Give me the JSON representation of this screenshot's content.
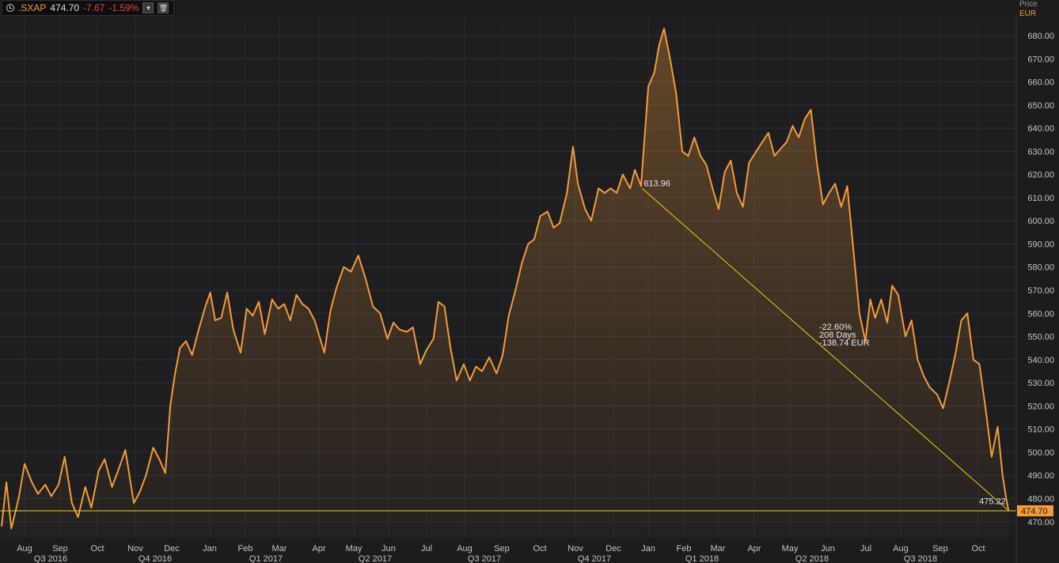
{
  "legend": {
    "symbol": ".SXAP",
    "last": "474.70",
    "change": "-7.67",
    "change_pct": "-1.59%",
    "icons": [
      "clock-icon",
      "chevron-down-icon",
      "trash-icon"
    ]
  },
  "axis_header": {
    "label": "Price",
    "currency": "EUR"
  },
  "colors": {
    "line": "#f39b3a",
    "trend": "#e6d21a",
    "background": "#1c1c1e",
    "negative": "#e0434c"
  },
  "chart_data": {
    "type": "area",
    "ylim": [
      465,
      685
    ],
    "y_ticks": [
      "470.00",
      "480.00",
      "490.00",
      "500.00",
      "510.00",
      "520.00",
      "530.00",
      "540.00",
      "550.00",
      "560.00",
      "570.00",
      "580.00",
      "590.00",
      "600.00",
      "610.00",
      "620.00",
      "630.00",
      "640.00",
      "650.00",
      "660.00",
      "670.00",
      "680.00"
    ],
    "month_labels": [
      "Aug",
      "Sep",
      "Oct",
      "Nov",
      "Dec",
      "Jan",
      "Feb",
      "Mar",
      "Apr",
      "May",
      "Jun",
      "Jul",
      "Aug",
      "Sep",
      "Oct",
      "Nov",
      "Dec",
      "Jan",
      "Feb",
      "Mar",
      "Apr",
      "May",
      "Jun",
      "Jul",
      "Aug",
      "Sep",
      "Oct"
    ],
    "quarter_labels": [
      "Q3 2016",
      "Q4 2016",
      "Q1 2017",
      "Q2 2017",
      "Q3 2017",
      "Q4 2017",
      "Q1 2018",
      "Q2 2018",
      "Q3 2018"
    ],
    "x_range": [
      "2016-07-18",
      "2018-10-31"
    ],
    "series": [
      {
        "values": [
          [
            "2016-07-18",
            468
          ],
          [
            "2016-07-22",
            487
          ],
          [
            "2016-07-26",
            467
          ],
          [
            "2016-08-01",
            480
          ],
          [
            "2016-08-06",
            495
          ],
          [
            "2016-08-12",
            487
          ],
          [
            "2016-08-17",
            482
          ],
          [
            "2016-08-23",
            486
          ],
          [
            "2016-08-28",
            481
          ],
          [
            "2016-09-03",
            486
          ],
          [
            "2016-09-08",
            498
          ],
          [
            "2016-09-14",
            478
          ],
          [
            "2016-09-19",
            472
          ],
          [
            "2016-09-25",
            485
          ],
          [
            "2016-09-30",
            476
          ],
          [
            "2016-10-06",
            492
          ],
          [
            "2016-10-11",
            497
          ],
          [
            "2016-10-17",
            485
          ],
          [
            "2016-10-22",
            492
          ],
          [
            "2016-10-28",
            501
          ],
          [
            "2016-11-04",
            478
          ],
          [
            "2016-11-09",
            483
          ],
          [
            "2016-11-14",
            490
          ],
          [
            "2016-11-20",
            502
          ],
          [
            "2016-11-25",
            497
          ],
          [
            "2016-11-30",
            491
          ],
          [
            "2016-12-04",
            520
          ],
          [
            "2016-12-08",
            534
          ],
          [
            "2016-12-12",
            545
          ],
          [
            "2016-12-17",
            548
          ],
          [
            "2016-12-22",
            542
          ],
          [
            "2016-12-27",
            552
          ],
          [
            "2017-01-02",
            563
          ],
          [
            "2017-01-06",
            569
          ],
          [
            "2017-01-10",
            557
          ],
          [
            "2017-01-15",
            558
          ],
          [
            "2017-01-20",
            569
          ],
          [
            "2017-01-25",
            553
          ],
          [
            "2017-01-31",
            543
          ],
          [
            "2017-02-05",
            562
          ],
          [
            "2017-02-10",
            559
          ],
          [
            "2017-02-15",
            565
          ],
          [
            "2017-02-20",
            551
          ],
          [
            "2017-02-26",
            566
          ],
          [
            "2017-03-03",
            562
          ],
          [
            "2017-03-08",
            564
          ],
          [
            "2017-03-13",
            557
          ],
          [
            "2017-03-18",
            568
          ],
          [
            "2017-03-23",
            564
          ],
          [
            "2017-03-28",
            562
          ],
          [
            "2017-04-02",
            557
          ],
          [
            "2017-04-10",
            543
          ],
          [
            "2017-04-15",
            561
          ],
          [
            "2017-04-20",
            571
          ],
          [
            "2017-04-26",
            580
          ],
          [
            "2017-05-02",
            578
          ],
          [
            "2017-05-08",
            585
          ],
          [
            "2017-05-14",
            575
          ],
          [
            "2017-05-20",
            563
          ],
          [
            "2017-05-26",
            560
          ],
          [
            "2017-06-01",
            549
          ],
          [
            "2017-06-06",
            556
          ],
          [
            "2017-06-11",
            553
          ],
          [
            "2017-06-17",
            552
          ],
          [
            "2017-06-22",
            554
          ],
          [
            "2017-06-28",
            538
          ],
          [
            "2017-07-03",
            544
          ],
          [
            "2017-07-09",
            549
          ],
          [
            "2017-07-13",
            565
          ],
          [
            "2017-07-18",
            563
          ],
          [
            "2017-07-23",
            545
          ],
          [
            "2017-07-28",
            531
          ],
          [
            "2017-08-03",
            538
          ],
          [
            "2017-08-08",
            531
          ],
          [
            "2017-08-13",
            537
          ],
          [
            "2017-08-18",
            535
          ],
          [
            "2017-08-24",
            541
          ],
          [
            "2017-08-30",
            534
          ],
          [
            "2017-09-04",
            542
          ],
          [
            "2017-09-09",
            559
          ],
          [
            "2017-09-15",
            571
          ],
          [
            "2017-09-20",
            582
          ],
          [
            "2017-09-25",
            590
          ],
          [
            "2017-09-30",
            592
          ],
          [
            "2017-10-05",
            602
          ],
          [
            "2017-10-11",
            604
          ],
          [
            "2017-10-16",
            597
          ],
          [
            "2017-10-21",
            599
          ],
          [
            "2017-10-27",
            612
          ],
          [
            "2017-11-01",
            632
          ],
          [
            "2017-11-05",
            616
          ],
          [
            "2017-11-11",
            605
          ],
          [
            "2017-11-16",
            600
          ],
          [
            "2017-11-22",
            614
          ],
          [
            "2017-11-27",
            612
          ],
          [
            "2017-12-02",
            614
          ],
          [
            "2017-12-07",
            612
          ],
          [
            "2017-12-12",
            620
          ],
          [
            "2017-12-18",
            614
          ],
          [
            "2017-12-22",
            622
          ],
          [
            "2017-12-27",
            615
          ],
          [
            "2018-01-02",
            658
          ],
          [
            "2018-01-07",
            664
          ],
          [
            "2018-01-11",
            676
          ],
          [
            "2018-01-15",
            683
          ],
          [
            "2018-01-20",
            670
          ],
          [
            "2018-01-25",
            655
          ],
          [
            "2018-01-30",
            630
          ],
          [
            "2018-02-04",
            628
          ],
          [
            "2018-02-09",
            636
          ],
          [
            "2018-02-14",
            628
          ],
          [
            "2018-02-19",
            624
          ],
          [
            "2018-02-24",
            614
          ],
          [
            "2018-03-01",
            605
          ],
          [
            "2018-03-06",
            621
          ],
          [
            "2018-03-11",
            626
          ],
          [
            "2018-03-16",
            612
          ],
          [
            "2018-03-21",
            606
          ],
          [
            "2018-03-26",
            625
          ],
          [
            "2018-04-01",
            630
          ],
          [
            "2018-04-06",
            634
          ],
          [
            "2018-04-11",
            638
          ],
          [
            "2018-04-16",
            628
          ],
          [
            "2018-04-21",
            631
          ],
          [
            "2018-04-26",
            634
          ],
          [
            "2018-05-01",
            641
          ],
          [
            "2018-05-06",
            636
          ],
          [
            "2018-05-11",
            644
          ],
          [
            "2018-05-16",
            648
          ],
          [
            "2018-05-21",
            625
          ],
          [
            "2018-05-26",
            607
          ],
          [
            "2018-05-31",
            612
          ],
          [
            "2018-06-05",
            616
          ],
          [
            "2018-06-10",
            606
          ],
          [
            "2018-06-15",
            615
          ],
          [
            "2018-06-20",
            588
          ],
          [
            "2018-06-25",
            560
          ],
          [
            "2018-06-30",
            548
          ],
          [
            "2018-07-04",
            566
          ],
          [
            "2018-07-08",
            558
          ],
          [
            "2018-07-13",
            566
          ],
          [
            "2018-07-18",
            556
          ],
          [
            "2018-07-22",
            572
          ],
          [
            "2018-07-27",
            568
          ],
          [
            "2018-08-02",
            550
          ],
          [
            "2018-08-07",
            557
          ],
          [
            "2018-08-12",
            540
          ],
          [
            "2018-08-17",
            533
          ],
          [
            "2018-08-22",
            528
          ],
          [
            "2018-08-28",
            525
          ],
          [
            "2018-09-02",
            519
          ],
          [
            "2018-09-07",
            530
          ],
          [
            "2018-09-12",
            542
          ],
          [
            "2018-09-17",
            557
          ],
          [
            "2018-09-22",
            560
          ],
          [
            "2018-09-27",
            540
          ],
          [
            "2018-10-02",
            538
          ],
          [
            "2018-10-07",
            519
          ],
          [
            "2018-10-12",
            498
          ],
          [
            "2018-10-17",
            511
          ],
          [
            "2018-10-21",
            490
          ],
          [
            "2018-10-24",
            480
          ],
          [
            "2018-10-26",
            474.7
          ]
        ]
      }
    ],
    "trendline": {
      "start": {
        "date": "2017-12-28",
        "value": 613.96,
        "label": "613.96"
      },
      "end": {
        "date": "2018-10-25",
        "value": 475.22,
        "label": "475.22"
      },
      "stats": [
        "-22.60%",
        "208 Days",
        "-138.74 EUR"
      ]
    },
    "last_price": {
      "value": 474.7,
      "label": "474.70"
    }
  }
}
